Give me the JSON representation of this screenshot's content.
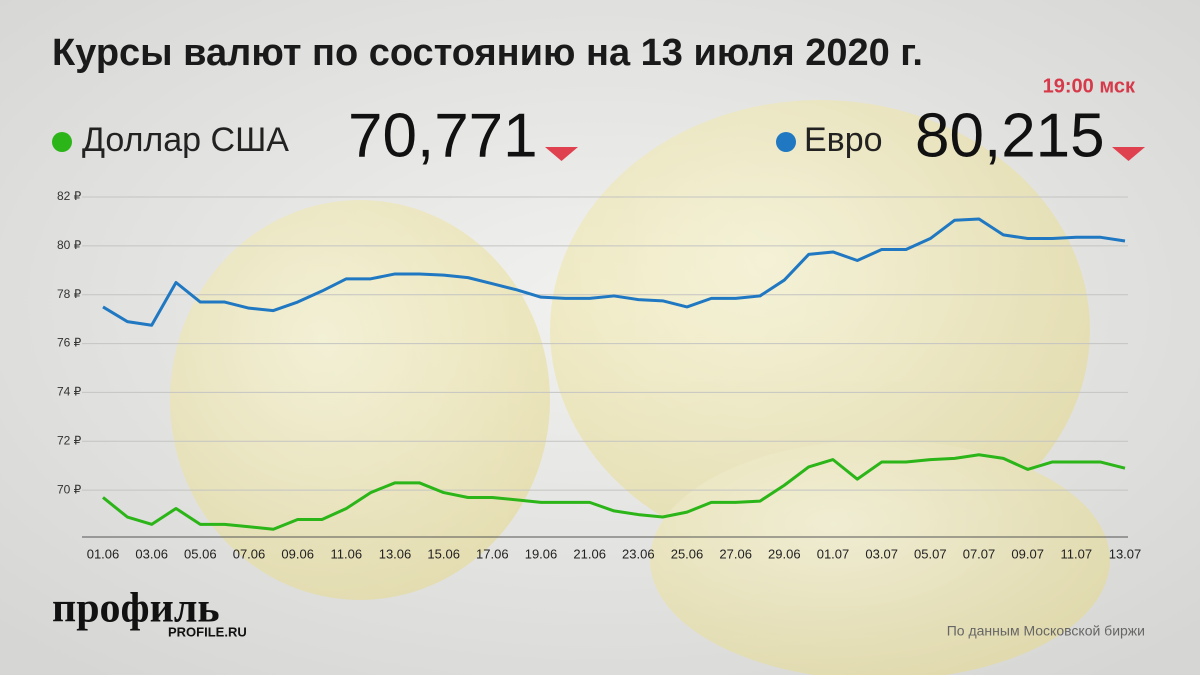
{
  "chart_data": {
    "type": "line",
    "title": "Курсы валют по состоянию на 13 июля 2020 г.",
    "subtitle": "19:00 мск",
    "categories": [
      "01.06",
      null,
      "03.06",
      null,
      "05.06",
      null,
      "07.06",
      null,
      "09.06",
      null,
      "11.06",
      null,
      "13.06",
      null,
      "15.06",
      null,
      "17.06",
      null,
      "19.06",
      null,
      "21.06",
      null,
      "23.06",
      null,
      "25.06",
      null,
      "27.06",
      null,
      "29.06",
      null,
      "01.07",
      null,
      "03.07",
      null,
      "05.07",
      null,
      "07.07",
      null,
      "09.07",
      null,
      "11.07",
      null,
      "13.07"
    ],
    "series": [
      {
        "name": "Доллар США",
        "headline": "70,771",
        "color": "#2bb518",
        "values": [
          69.7,
          68.9,
          68.6,
          69.25,
          68.6,
          68.6,
          68.5,
          68.4,
          68.8,
          68.8,
          69.25,
          69.9,
          70.3,
          70.3,
          69.9,
          69.7,
          69.7,
          69.6,
          69.5,
          69.5,
          69.5,
          69.15,
          69.0,
          68.9,
          69.1,
          69.5,
          69.5,
          69.55,
          70.2,
          70.95,
          71.25,
          70.45,
          71.15,
          71.15,
          71.25,
          71.3,
          71.45,
          71.3,
          70.85,
          71.15,
          71.15,
          71.15,
          70.9
        ]
      },
      {
        "name": "Евро",
        "headline": "80,215",
        "color": "#1f78c1",
        "values": [
          77.5,
          76.9,
          76.75,
          78.5,
          77.7,
          77.7,
          77.45,
          77.35,
          77.7,
          78.15,
          78.65,
          78.65,
          78.85,
          78.85,
          78.8,
          78.7,
          78.45,
          78.2,
          77.9,
          77.85,
          77.85,
          77.95,
          77.8,
          77.75,
          77.5,
          77.85,
          77.85,
          77.95,
          78.6,
          79.65,
          79.75,
          79.4,
          79.85,
          79.85,
          80.3,
          81.05,
          81.1,
          80.45,
          80.3,
          80.3,
          80.35,
          80.35,
          80.2
        ]
      }
    ],
    "ylim": [
      68,
      82
    ],
    "yticks": [
      {
        "value": 70,
        "label": "70 ₽"
      },
      {
        "value": 72,
        "label": "72 ₽"
      },
      {
        "value": 74,
        "label": "74 ₽"
      },
      {
        "value": 76,
        "label": "76 ₽"
      },
      {
        "value": 78,
        "label": "78 ₽"
      },
      {
        "value": 80,
        "label": "80 ₽"
      },
      {
        "value": 82,
        "label": "82 ₽"
      }
    ],
    "grid": true,
    "brand": {
      "name": "профиль",
      "url": "PROFILE.RU"
    },
    "source": "По данным Московской биржи"
  }
}
